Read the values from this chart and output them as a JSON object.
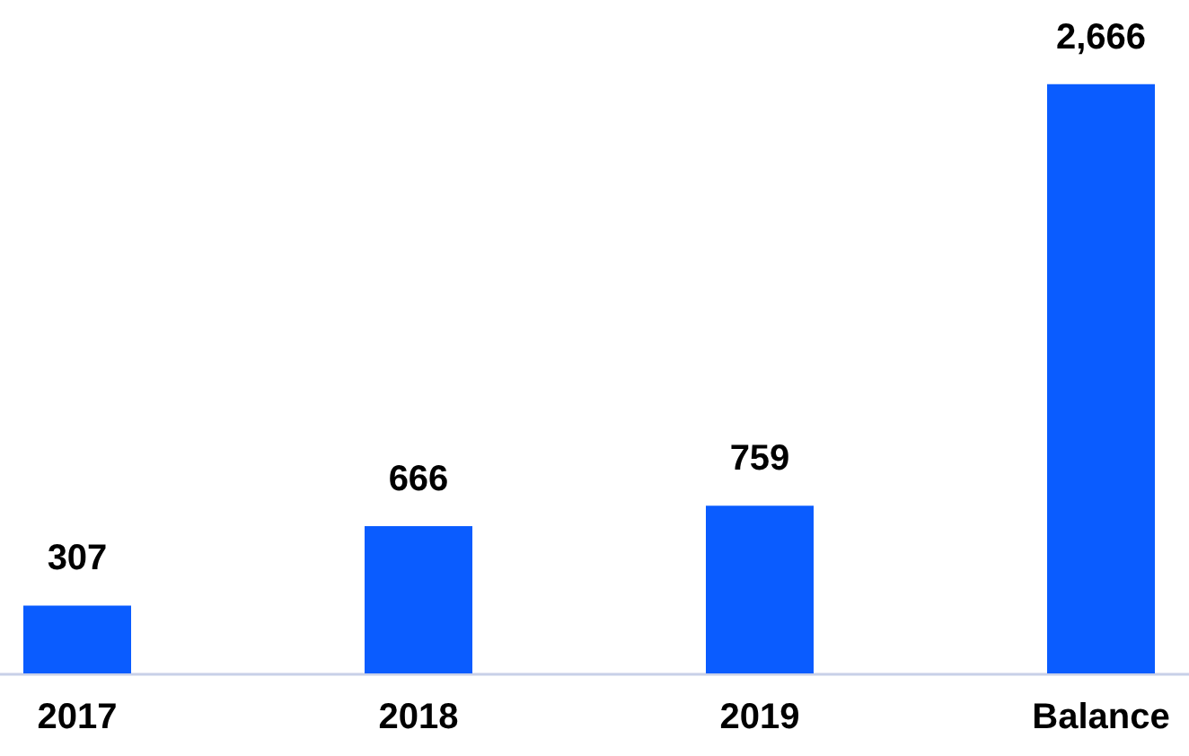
{
  "chart_data": {
    "type": "bar",
    "categories": [
      "2017",
      "2018",
      "2019",
      "Balance"
    ],
    "values": [
      307,
      666,
      759,
      2666
    ],
    "color": "#0a5cff",
    "value_labels": [
      "307",
      "666",
      "759",
      "2,666"
    ]
  }
}
